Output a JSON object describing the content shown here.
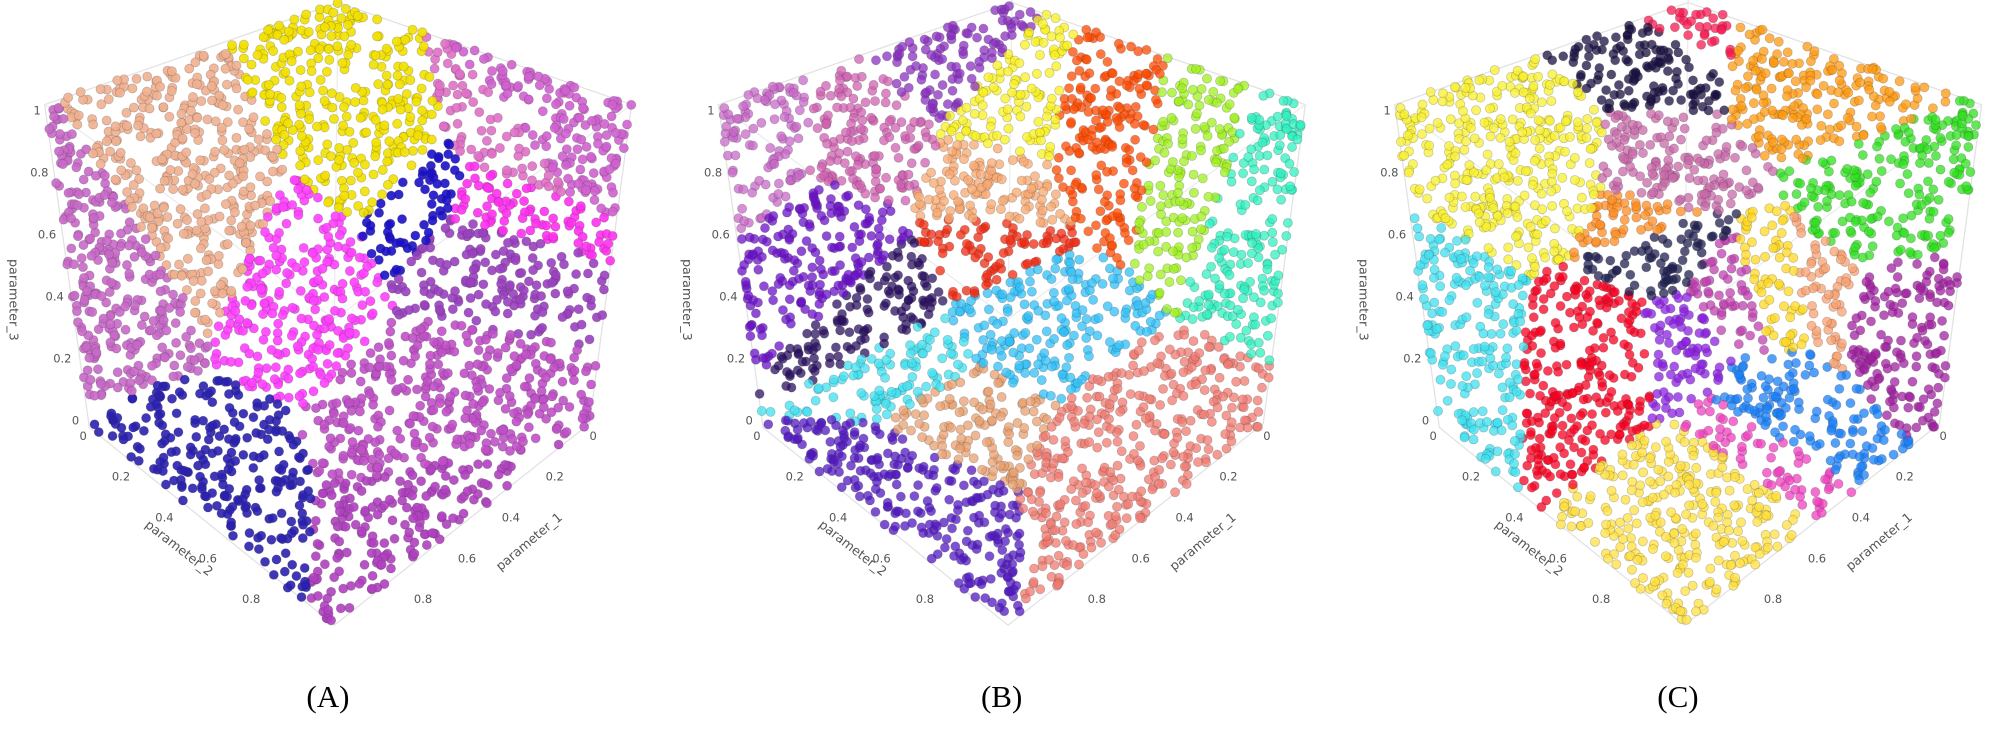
{
  "panels": [
    {
      "label": "(A)",
      "x_title": "parameter_1",
      "y_title": "parameter_2",
      "z_title": "parameter_3",
      "x_ticks": [
        0,
        0.2,
        0.4,
        0.6,
        0.8
      ],
      "y_ticks": [
        0,
        0.2,
        0.4,
        0.6,
        0.8
      ],
      "z_ticks": [
        0,
        0.2,
        0.4,
        0.6,
        0.8,
        1
      ]
    },
    {
      "label": "(B)",
      "x_title": "parameter_1",
      "y_title": "parameter_2",
      "z_title": "parameter_3",
      "x_ticks": [
        0,
        0.2,
        0.4,
        0.6,
        0.8
      ],
      "y_ticks": [
        0,
        0.2,
        0.4,
        0.6,
        0.8
      ],
      "z_ticks": [
        0,
        0.2,
        0.4,
        0.6,
        0.8,
        1
      ]
    },
    {
      "label": "(C)",
      "x_title": "parameter_1",
      "y_title": "parameter_2",
      "z_title": "parameter_3",
      "x_ticks": [
        0,
        0.2,
        0.4,
        0.6,
        0.8
      ],
      "y_ticks": [
        0,
        0.2,
        0.4,
        0.6,
        0.8
      ],
      "z_ticks": [
        0,
        0.2,
        0.4,
        0.6,
        0.8,
        1
      ]
    }
  ]
}
